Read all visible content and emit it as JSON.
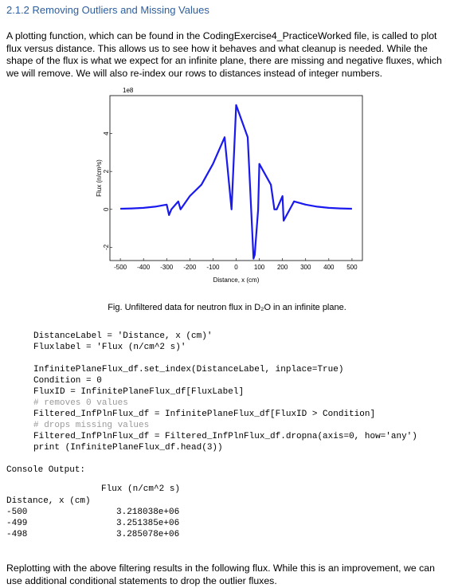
{
  "heading": "2.1.2 Removing Outliers and Missing Values",
  "intro": "A plotting function, which can be found in the CodingExercise4_PracticeWorked file, is called to plot flux versus distance. This allows us to see how it behaves and what cleanup is needed. While the shape of the flux is what we expect for an infinite plane, there are missing and negative fluxes, which we will remove. We will also re-index our rows to distances instead of integer numbers.",
  "chart_data": {
    "type": "line",
    "x_label": "Distance, x (cm)",
    "y_label": "Flux (n/cm²s)",
    "y_offset_label": "1e8",
    "x": [
      -500,
      -450,
      -400,
      -350,
      -300,
      -290,
      -280,
      -250,
      -240,
      -200,
      -150,
      -100,
      -50,
      -20,
      0,
      50,
      75,
      80,
      95,
      100,
      150,
      165,
      175,
      200,
      205,
      250,
      300,
      350,
      400,
      450,
      500
    ],
    "series": [
      {
        "color": "#1a1aee",
        "values": [
          0.03,
          0.05,
          0.08,
          0.14,
          0.25,
          -0.3,
          0,
          0.42,
          0,
          0.7,
          1.3,
          2.4,
          3.8,
          0,
          5.5,
          3.8,
          -2.6,
          -2.4,
          0,
          2.4,
          1.3,
          0,
          0,
          0.7,
          -0.6,
          0.42,
          0.25,
          0.14,
          0.08,
          0.05,
          0.03
        ]
      }
    ],
    "xlim": [
      -545,
      545
    ],
    "ylim": [
      -2.7,
      6.0
    ],
    "xticks": [
      -500,
      -400,
      -300,
      -200,
      -100,
      0,
      100,
      200,
      300,
      400,
      500
    ],
    "yticks": [
      -2,
      0,
      2,
      4
    ]
  },
  "caption": "Fig. Unfiltered data for neutron flux in D₂O in an infinite plane.",
  "code_blocks": [
    [
      "DistanceLabel = 'Distance, x (cm)'",
      "Fluxlabel = 'Flux (n/cm^2 s)'"
    ],
    [
      "InfinitePlaneFlux_df.set_index(DistanceLabel, inplace=True)",
      "Condition = 0",
      "FluxID = InfinitePlaneFlux_df[FluxLabel]",
      "# removes 0 values",
      "Filtered_InfPlnFlux_df = InfinitePlaneFlux_df[FluxID > Condition]",
      "# drops missing values",
      "Filtered_InfPlnFlux_df = Filtered_InfPlnFlux_df.dropna(axis=0, how='any')",
      "print (InfinitePlaneFlux_df.head(3))"
    ]
  ],
  "console": {
    "label": "Console Output:",
    "column": "Flux (n/cm^2 s)",
    "index_name": "Distance, x (cm)",
    "rows": [
      [
        "-500",
        "3.218038e+06"
      ],
      [
        "-499",
        "3.251385e+06"
      ],
      [
        "-498",
        "3.285078e+06"
      ]
    ]
  },
  "closing": "Replotting with the above filtering results in the following flux. While this is an improvement, we can use additional conditional statements to drop the outlier fluxes."
}
